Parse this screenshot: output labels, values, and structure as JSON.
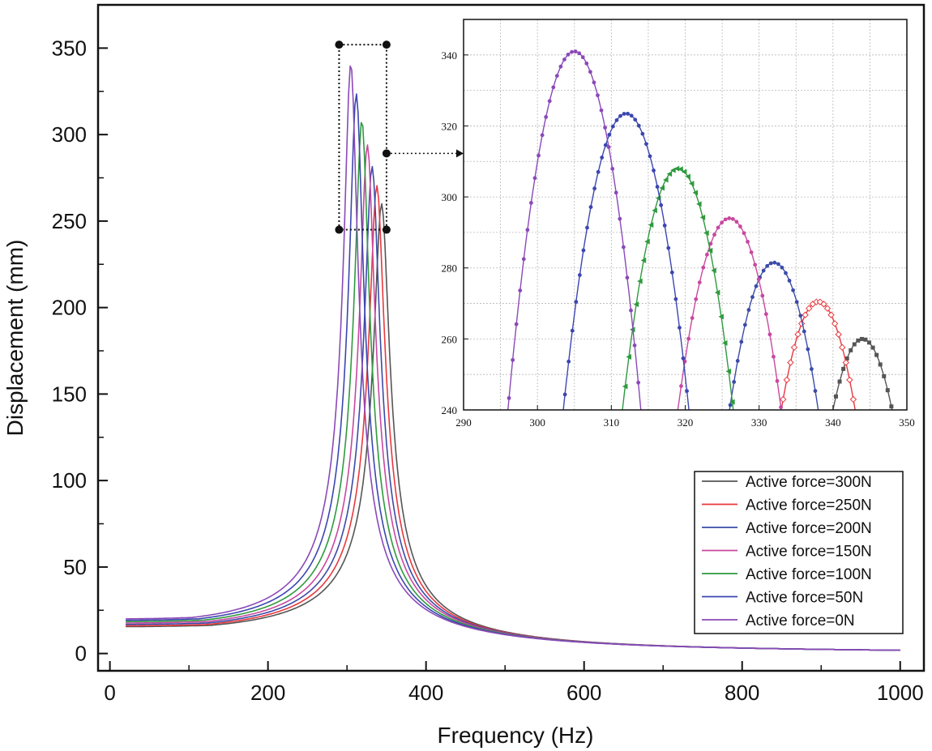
{
  "chart_data": [
    {
      "id": "main",
      "type": "line",
      "title": "",
      "xlabel": "Frequency (Hz)",
      "ylabel": "Displacement (mm)",
      "xlim": [
        -15,
        1030
      ],
      "ylim": [
        -10,
        375
      ],
      "xticks": [
        "0",
        "200",
        "400",
        "600",
        "800",
        "1000"
      ],
      "yticks": [
        "0",
        "50",
        "100",
        "150",
        "200",
        "250",
        "300",
        "350"
      ],
      "legend_position": "bottom-right",
      "series": [
        {
          "name": "Active force=300N",
          "color": "#555555",
          "f0": 344,
          "peak": 260,
          "base": 15.5
        },
        {
          "name": "Active force=250N",
          "color": "#e8383d",
          "f0": 338,
          "peak": 270.5,
          "base": 16.0
        },
        {
          "name": "Active force=200N",
          "color": "#3b4ba8",
          "f0": 332,
          "peak": 281.5,
          "base": 16.8
        },
        {
          "name": "Active force=150N",
          "color": "#c8489f",
          "f0": 326,
          "peak": 294,
          "base": 17.6
        },
        {
          "name": "Active force=100N",
          "color": "#2e9a3e",
          "f0": 319,
          "peak": 308,
          "base": 18.4
        },
        {
          "name": "Active force=50N",
          "color": "#3c46b0",
          "f0": 312,
          "peak": 323.5,
          "base": 19.2
        },
        {
          "name": "Active force=0N",
          "color": "#8a49b8",
          "f0": 305,
          "peak": 341,
          "base": 20.0
        }
      ]
    },
    {
      "id": "inset",
      "type": "line",
      "title": "",
      "xlabel": "",
      "ylabel": "",
      "xlim": [
        290,
        350
      ],
      "ylim": [
        240,
        350
      ],
      "xticks": [
        "290",
        "300",
        "310",
        "320",
        "330",
        "340",
        "350"
      ],
      "yticks": [
        "240",
        "260",
        "280",
        "300",
        "320",
        "340"
      ],
      "grid": true,
      "zoom_region": {
        "x": [
          290,
          350
        ],
        "y": [
          245,
          352
        ]
      },
      "series": [
        {
          "name": "Active force=300N",
          "f0": 344,
          "peak": 260,
          "half_width_at_240": 4.0,
          "marker": "square"
        },
        {
          "name": "Active force=250N",
          "f0": 338,
          "peak": 270.5,
          "half_width_at_240": 5.0,
          "marker": "diamond-open"
        },
        {
          "name": "Active force=200N",
          "f0": 332,
          "peak": 281.5,
          "half_width_at_240": 6.0,
          "marker": "circle"
        },
        {
          "name": "Active force=150N",
          "f0": 326,
          "peak": 294,
          "half_width_at_240": 7.0,
          "marker": "circle"
        },
        {
          "name": "Active force=100N",
          "f0": 319,
          "peak": 308,
          "half_width_at_240": 7.5,
          "marker": "triangle-left"
        },
        {
          "name": "Active force=50N",
          "f0": 312,
          "peak": 323.5,
          "half_width_at_240": 8.5,
          "marker": "circle"
        },
        {
          "name": "Active force=0N",
          "f0": 305,
          "peak": 341,
          "half_width_at_240": 9.0,
          "marker": "circle"
        }
      ]
    }
  ]
}
